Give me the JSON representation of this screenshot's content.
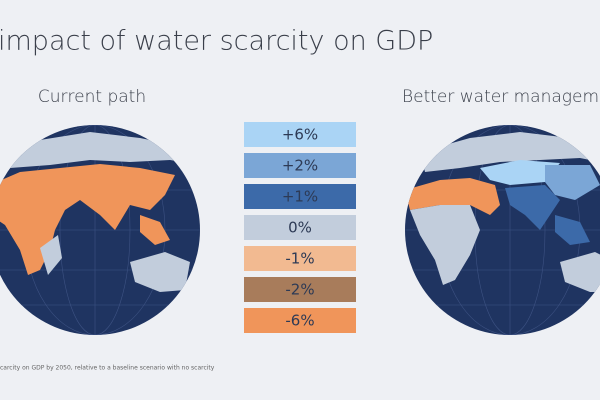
{
  "title": "impact of water scarcity on GDP",
  "maps": [
    {
      "label": "Current path"
    },
    {
      "label": "Better water management"
    }
  ],
  "legend": [
    {
      "label": "+6%",
      "color": "#aad4f5"
    },
    {
      "label": "+2%",
      "color": "#7ba6d6"
    },
    {
      "label": "+1%",
      "color": "#3c6aa9"
    },
    {
      "label": "0%",
      "color": "#c2cddc"
    },
    {
      "label": "-1%",
      "color": "#f2ba91"
    },
    {
      "label": "-2%",
      "color": "#a87c5b"
    },
    {
      "label": "-6%",
      "color": "#f0955a"
    }
  ],
  "footnote": "carcity on GDP by 2050, relative to a baseline scenario with no scarcity"
}
